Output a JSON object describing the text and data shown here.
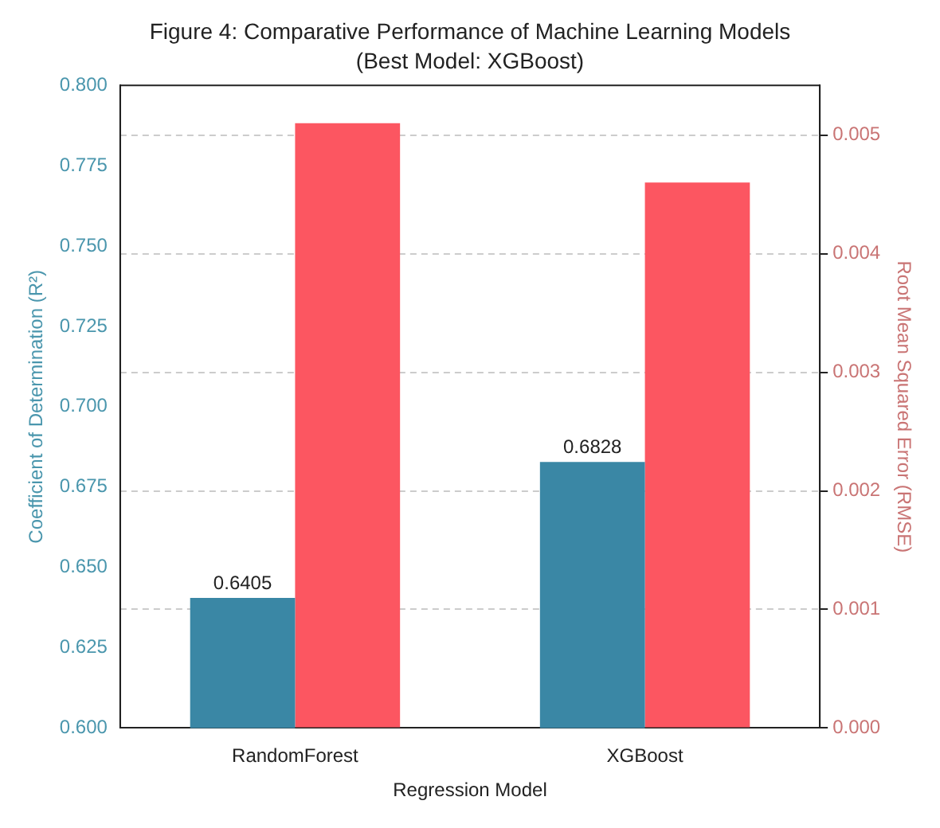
{
  "chart_data": {
    "type": "bar",
    "title": "Figure 4: Comparative Performance of Machine Learning Models",
    "subtitle": "(Best Model: XGBoost)",
    "xlabel": "Regression Model",
    "ylabel": "Coefficient of Determination (R²)",
    "y2label": "Root Mean Squared Error (RMSE)",
    "categories": [
      "RandomForest",
      "XGBoost"
    ],
    "series": [
      {
        "color": "#3a87a5",
        "values": [
          0.6405,
          0.6828
        ],
        "value_labels": [
          "0.6405",
          "0.6828"
        ]
      },
      {
        "color": "#fc5661",
        "values": [
          0.0051,
          0.0046
        ],
        "axis": "y2"
      }
    ],
    "ylim": [
      0.6,
      0.8
    ],
    "yticks": [
      {
        "value": 0.6,
        "label": "0.600"
      },
      {
        "value": 0.625,
        "label": "0.625"
      },
      {
        "value": 0.65,
        "label": "0.650"
      },
      {
        "value": 0.675,
        "label": "0.675"
      },
      {
        "value": 0.7,
        "label": "0.700"
      },
      {
        "value": 0.725,
        "label": "0.725"
      },
      {
        "value": 0.75,
        "label": "0.750"
      },
      {
        "value": 0.775,
        "label": "0.775"
      },
      {
        "value": 0.8,
        "label": "0.800"
      }
    ],
    "y2lim": [
      0,
      0.00542
    ],
    "y2ticks": [
      {
        "value": 0,
        "label": "0.000"
      },
      {
        "value": 0.001,
        "label": "0.001"
      },
      {
        "value": 0.002,
        "label": "0.002"
      },
      {
        "value": 0.003,
        "label": "0.003"
      },
      {
        "value": 0.004,
        "label": "0.004"
      },
      {
        "value": 0.005,
        "label": "0.005"
      }
    ],
    "grid": true,
    "legend": false
  }
}
